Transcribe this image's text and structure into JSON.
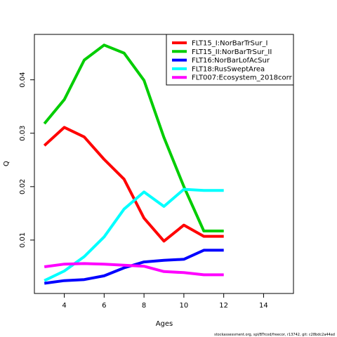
{
  "chart_data": {
    "type": "line",
    "xlabel": "Ages",
    "ylabel": "Q",
    "xlim": [
      2.5,
      15.5
    ],
    "ylim": [
      0.0,
      0.0485
    ],
    "xticks": [
      4,
      6,
      8,
      10,
      12,
      14
    ],
    "xtick_labels": [
      "4",
      "6",
      "8",
      "10",
      "12",
      "14"
    ],
    "yticks": [
      0.01,
      0.02,
      0.03,
      0.04
    ],
    "ytick_labels": [
      "0.01",
      "0.02",
      "0.03",
      "0.04"
    ],
    "grid": false,
    "legend_position": "top-right",
    "footer": "stockassessment.org, spl/BTrcod/freecor, r13742, git: c28bdc2a44ad",
    "series": [
      {
        "name": "FLT15_I:NorBarTrSur_I",
        "color": "#ff0000",
        "x": [
          3,
          4,
          5,
          6,
          7,
          8,
          9,
          10,
          11,
          12
        ],
        "y": [
          0.0277,
          0.0311,
          0.0293,
          0.0251,
          0.0214,
          0.0141,
          0.0098,
          0.0128,
          0.0107,
          0.0107
        ]
      },
      {
        "name": "FLT15_II:NorBarTrSur_II",
        "color": "#00cd00",
        "x": [
          3,
          4,
          5,
          6,
          7,
          8,
          9,
          10,
          11,
          12
        ],
        "y": [
          0.0318,
          0.0363,
          0.0437,
          0.0465,
          0.045,
          0.0399,
          0.0292,
          0.02,
          0.0117,
          0.0117
        ]
      },
      {
        "name": "FLT16:NorBarLofAcSur",
        "color": "#0000ff",
        "x": [
          3,
          4,
          5,
          6,
          7,
          8,
          9,
          10,
          11,
          12
        ],
        "y": [
          0.0019,
          0.0024,
          0.0026,
          0.0033,
          0.0048,
          0.0059,
          0.0062,
          0.0064,
          0.0081,
          0.0081
        ]
      },
      {
        "name": "FLT18:RusSweptArea",
        "color": "#00ffff",
        "x": [
          3,
          4,
          5,
          6,
          7,
          8,
          9,
          10,
          11,
          12
        ],
        "y": [
          0.0024,
          0.0042,
          0.0069,
          0.0106,
          0.0158,
          0.019,
          0.0163,
          0.0195,
          0.0193,
          0.0193
        ]
      },
      {
        "name": "FLT007:Ecosystem_2018corr",
        "color": "#ff00ff",
        "x": [
          3,
          4,
          5,
          6,
          7,
          8,
          9,
          10,
          11,
          12
        ],
        "y": [
          0.005,
          0.0055,
          0.0056,
          0.0055,
          0.0053,
          0.0051,
          0.0041,
          0.0039,
          0.0035,
          0.0035
        ]
      }
    ]
  }
}
